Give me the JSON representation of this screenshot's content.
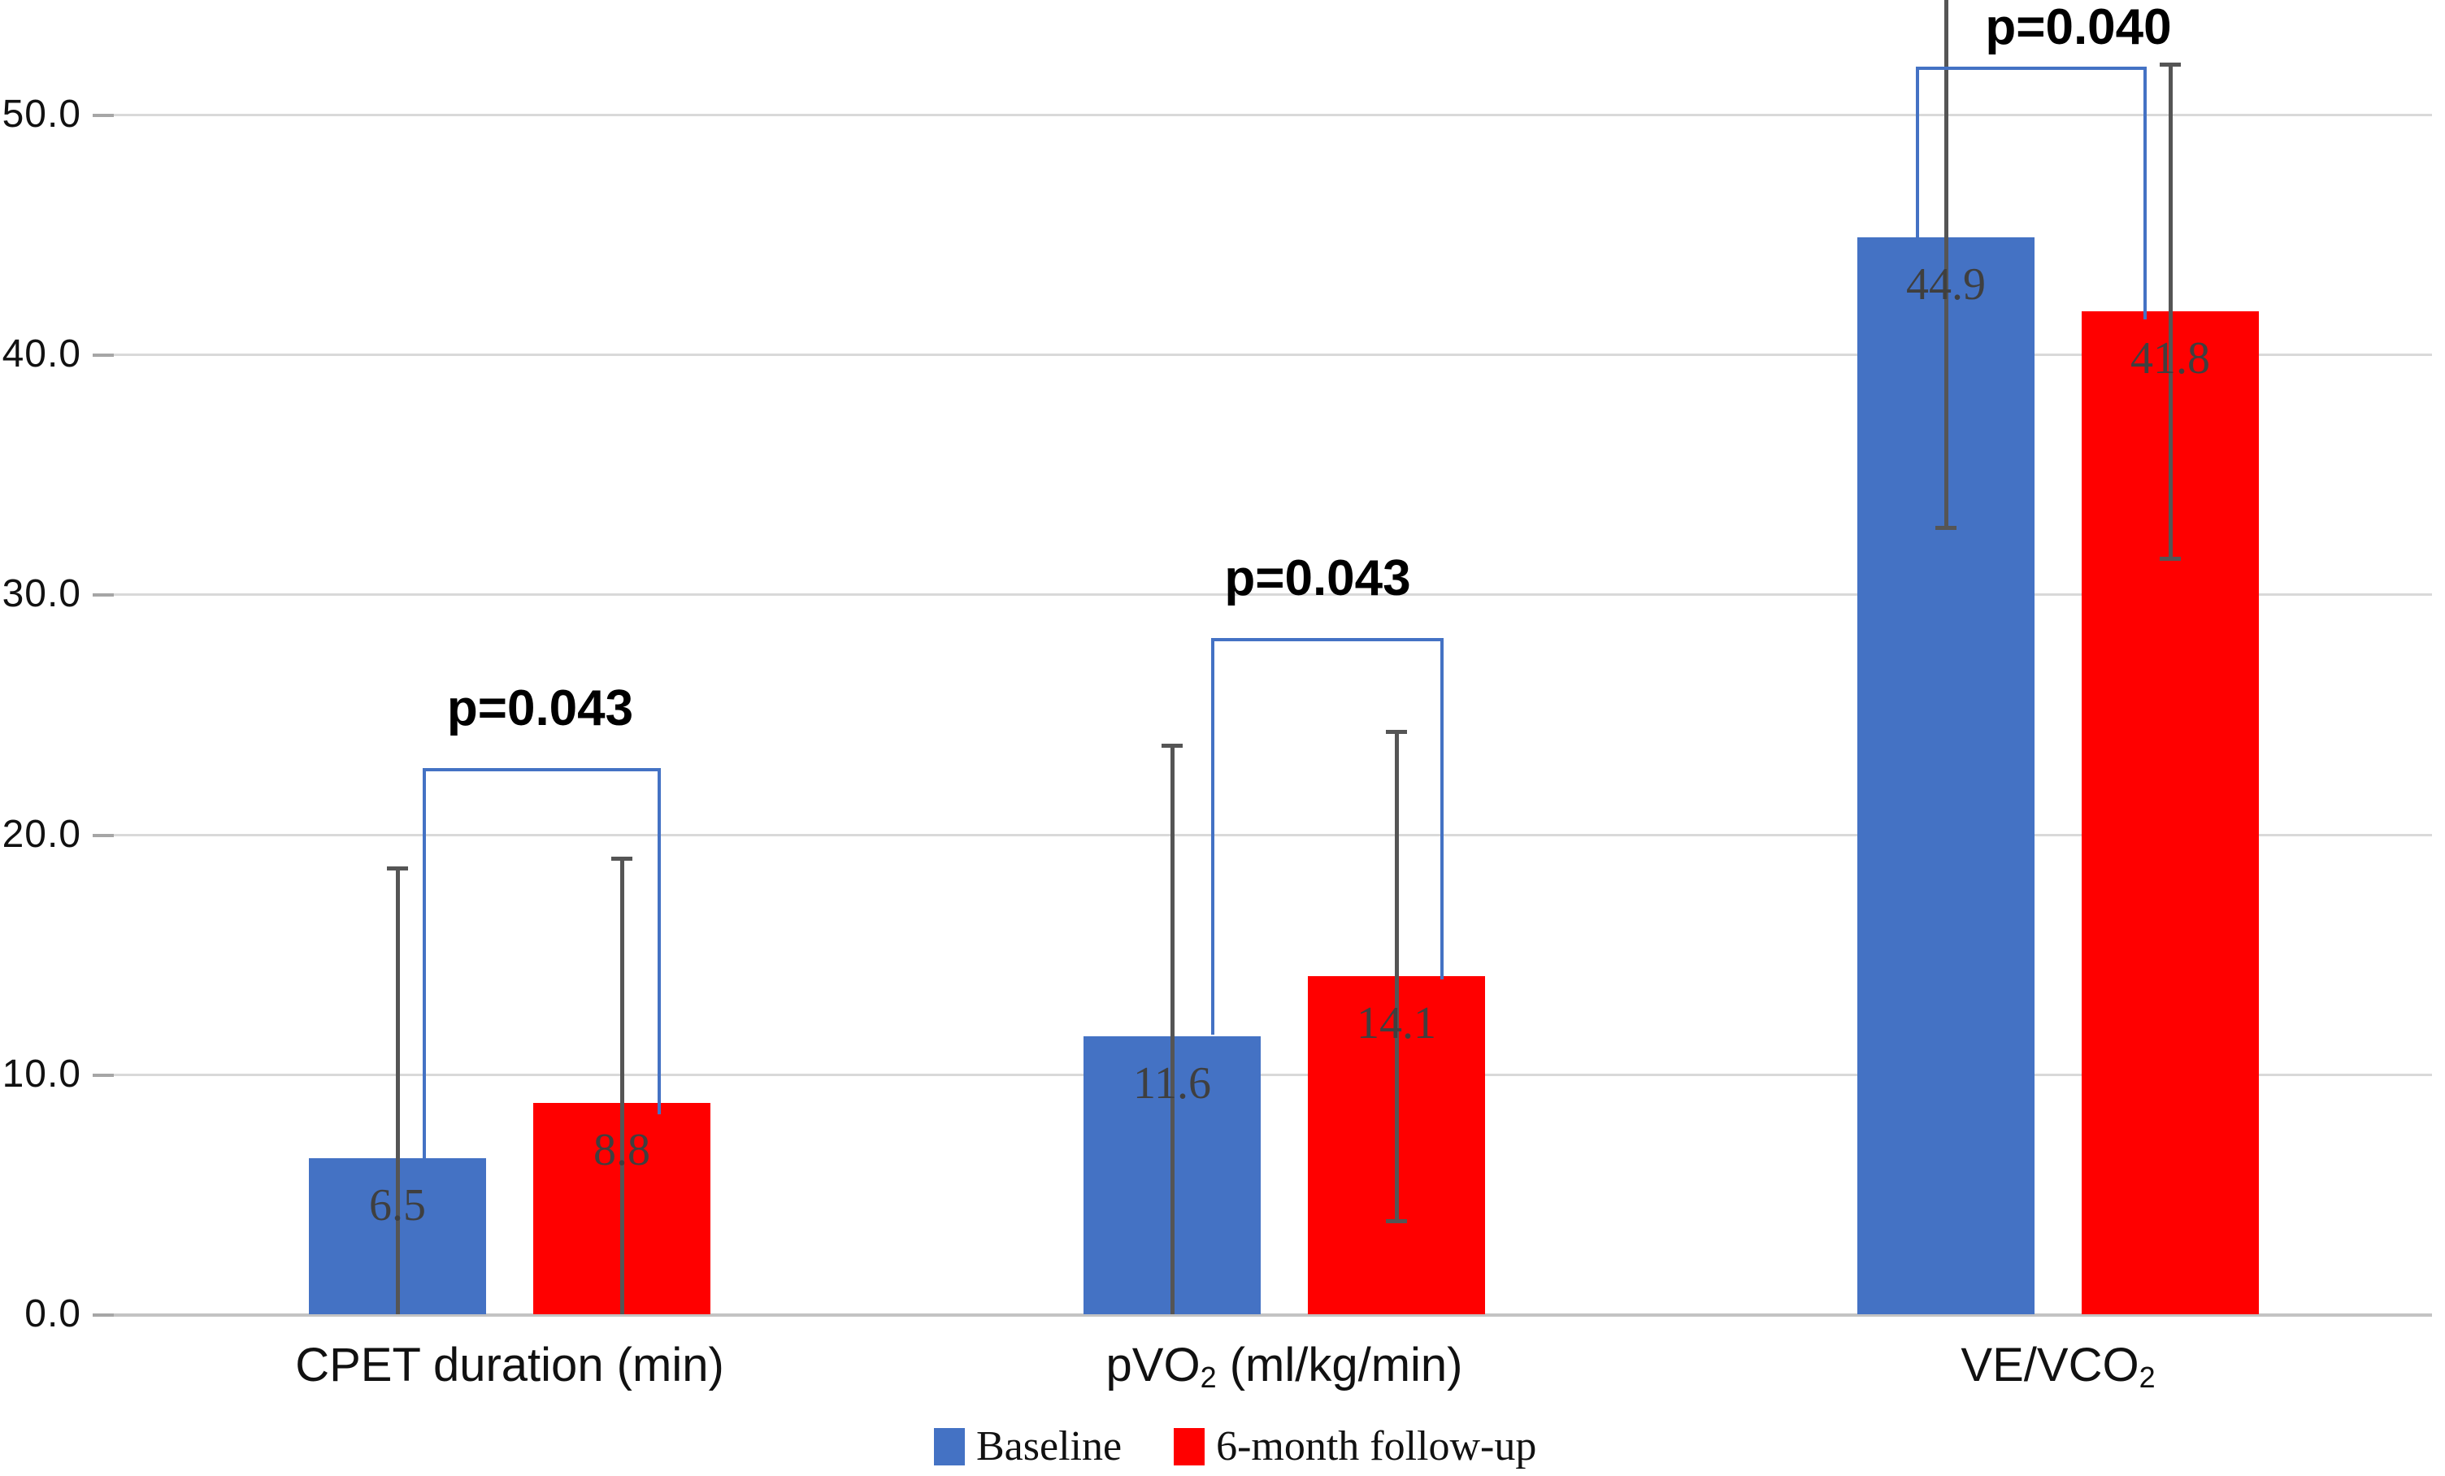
{
  "chart_data": {
    "type": "bar",
    "title": "",
    "xlabel": "",
    "ylabel": "",
    "categories": [
      {
        "label": "CPET duration (min)",
        "parts": [
          {
            "t": "CPET duration (min)",
            "sub": false
          }
        ]
      },
      {
        "label": "pVO2 (ml/kg/min)",
        "parts": [
          {
            "t": "pVO",
            "sub": false
          },
          {
            "t": "2",
            "sub": true
          },
          {
            "t": " (ml/kg/min)",
            "sub": false
          }
        ]
      },
      {
        "label": "VE/VCO2",
        "parts": [
          {
            "t": "VE/VCO",
            "sub": false
          },
          {
            "t": "2",
            "sub": true
          }
        ]
      }
    ],
    "series": [
      {
        "name": "Baseline",
        "color": "#4472C4",
        "values": [
          6.5,
          11.6,
          44.9
        ],
        "value_labels": [
          "6.5",
          "11.6",
          "44.9"
        ],
        "sd": [
          12.1,
          12.1,
          12.1
        ]
      },
      {
        "name": "6-month follow-up",
        "color": "#FF0000",
        "values": [
          8.8,
          14.1,
          41.8
        ],
        "value_labels": [
          "8.8",
          "14.1",
          "41.8"
        ],
        "sd": [
          10.2,
          10.2,
          10.3
        ]
      }
    ],
    "p_values": [
      "p=0.043",
      "p=0.043",
      "p=0.040"
    ],
    "ylim": [
      0,
      54.8
    ],
    "yticks": {
      "values": [
        0,
        10,
        20,
        30,
        40,
        50
      ],
      "labels": [
        "0.0",
        "10.0",
        "20.0",
        "30.0",
        "40.0",
        "50.0"
      ]
    },
    "grid": true,
    "legend_position": "bottom",
    "colors": {
      "gridline": "#D9D9D9",
      "axis_line": "#C3C3C3",
      "error_bar": "#555555",
      "bracket": "#4472C4",
      "value_label": "#3F3F3F",
      "background": "#FFFFFF"
    }
  }
}
